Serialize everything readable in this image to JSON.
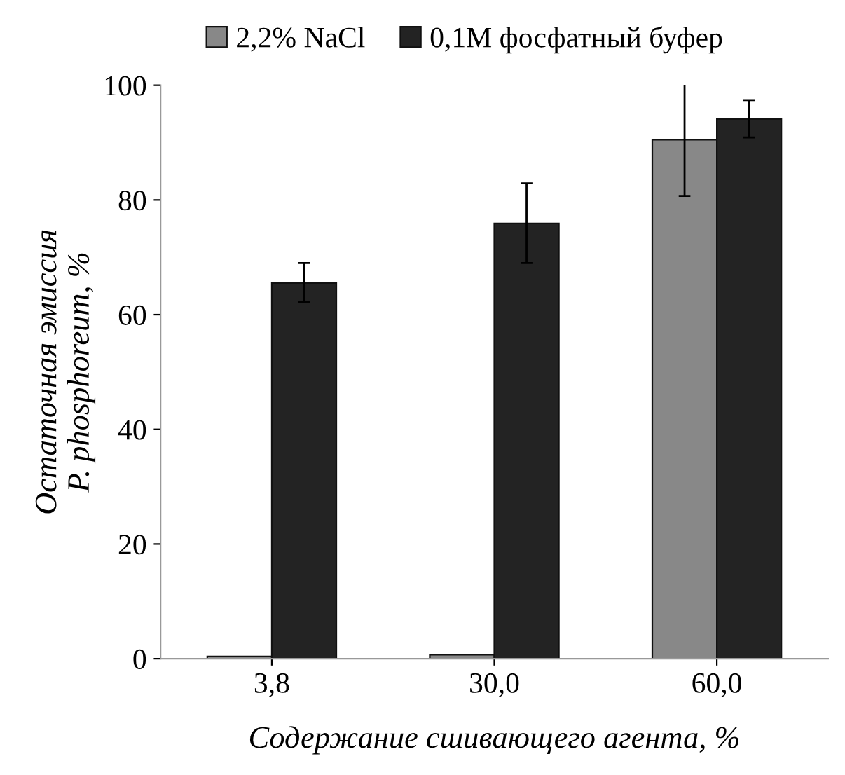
{
  "chart_data": {
    "type": "bar",
    "xlabel": "Содержание сшивающего агента, %",
    "ylabel": "Остаточная эмиссия\nP. phosphoreum, %",
    "categories": [
      "3,8",
      "30,0",
      "60,0"
    ],
    "series": [
      {
        "name": "2,2% NaCl",
        "color": "#888888",
        "values": [
          0.4,
          0.7,
          90.5
        ],
        "errors": [
          null,
          null,
          [
            80.7,
            100.6
          ]
        ]
      },
      {
        "name": "0,1M фосфатный буфер",
        "color": "#232323",
        "values": [
          65.5,
          75.9,
          94.1
        ],
        "errors": [
          [
            62.2,
            69
          ],
          [
            69,
            82.9
          ],
          [
            90.9,
            97.4
          ]
        ]
      }
    ],
    "ylim": [
      0,
      100
    ],
    "yticks": [
      0,
      20,
      40,
      60,
      80,
      100
    ],
    "grid": false,
    "legend": "top"
  }
}
